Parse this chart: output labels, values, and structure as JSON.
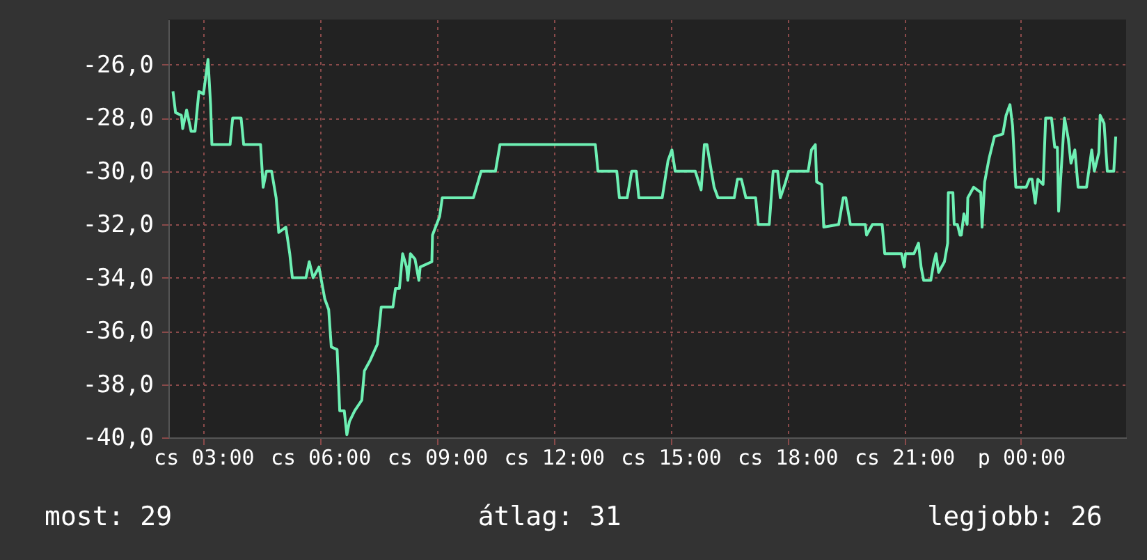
{
  "chart_data": {
    "type": "line",
    "xlim": [
      "--01-04T02:06",
      "--01-05T02:42"
    ],
    "ylim": [
      -40,
      -24.3
    ],
    "xticks": [
      {
        "value": "--01-04T03:00",
        "label": "cs 03:00"
      },
      {
        "value": "--01-04T06:00",
        "label": "cs 06:00"
      },
      {
        "value": "--01-04T09:00",
        "label": "cs 09:00"
      },
      {
        "value": "--01-04T12:00",
        "label": "cs 12:00"
      },
      {
        "value": "--01-04T15:00",
        "label": "cs 15:00"
      },
      {
        "value": "--01-04T18:00",
        "label": "cs 18:00"
      },
      {
        "value": "--01-04T21:00",
        "label": "cs 21:00"
      },
      {
        "value": "--01-05T00:00",
        "label": "p 00:00"
      }
    ],
    "yticks": [
      {
        "value": -40,
        "label": "-40,0"
      },
      {
        "value": -38,
        "label": "-38,0"
      },
      {
        "value": -36,
        "label": "-36,0"
      },
      {
        "value": -34,
        "label": "-34,0"
      },
      {
        "value": -32,
        "label": "-32,0"
      },
      {
        "value": -30,
        "label": "-30,0"
      },
      {
        "value": -28,
        "label": "-28,0"
      },
      {
        "value": -26,
        "label": "-26,0"
      }
    ],
    "grid": true,
    "annotations": [
      "most: 29",
      "átlag: 31",
      "legjobb: 26"
    ],
    "series": [
      {
        "color": "#6ef0b4",
        "x": [
          "--01-04T02:13",
          "--01-04T02:17",
          "--01-04T02:26",
          "--01-04T02:28",
          "--01-04T02:34",
          "--01-04T02:41",
          "--01-04T02:47",
          "--01-04T02:53",
          "--01-04T03:00",
          "--01-04T03:07",
          "--01-04T03:11",
          "--01-04T03:13",
          "--01-04T03:41",
          "--01-04T03:45",
          "--01-04T03:58",
          "--01-04T04:02",
          "--01-04T04:28",
          "--01-04T04:32",
          "--01-04T04:37",
          "--01-04T04:45",
          "--01-04T04:52",
          "--01-04T04:56",
          "--01-04T05:07",
          "--01-04T05:13",
          "--01-04T05:17",
          "--01-04T05:38",
          "--01-04T05:43",
          "--01-04T05:49",
          "--01-04T05:58",
          "--01-04T06:07",
          "--01-04T06:13",
          "--01-04T06:17",
          "--01-04T06:26",
          "--01-04T06:30",
          "--01-04T06:37",
          "--01-04T06:41",
          "--01-04T06:45",
          "--01-04T06:53",
          "--01-04T07:04",
          "--01-04T07:08",
          "--01-04T07:17",
          "--01-04T07:28",
          "--01-04T07:34",
          "--01-04T07:52",
          "--01-04T07:56",
          "--01-04T08:02",
          "--01-04T08:07",
          "--01-04T08:13",
          "--01-04T08:15",
          "--01-04T08:19",
          "--01-04T08:26",
          "--01-04T08:32",
          "--01-04T08:34",
          "--01-04T08:52",
          "--01-04T08:53",
          "--01-04T09:04",
          "--01-04T09:08",
          "--01-04T09:37",
          "--01-04T09:56",
          "--01-04T10:02",
          "--01-04T10:08",
          "--01-04T10:30",
          "--01-04T10:37",
          "--01-04T13:04",
          "--01-04T13:08",
          "--01-04T13:37",
          "--01-04T13:41",
          "--01-04T13:53",
          "--01-04T14:00",
          "--01-04T14:07",
          "--01-04T14:11",
          "--01-04T14:47",
          "--01-04T14:56",
          "--01-04T15:02",
          "--01-04T15:07",
          "--01-04T15:38",
          "--01-04T15:47",
          "--01-04T15:52",
          "--01-04T15:56",
          "--01-04T16:00",
          "--01-04T16:07",
          "--01-04T16:13",
          "--01-04T16:38",
          "--01-04T16:43",
          "--01-04T16:49",
          "--01-04T16:56",
          "--01-04T17:11",
          "--01-04T17:15",
          "--01-04T17:32",
          "--01-04T17:38",
          "--01-04T17:45",
          "--01-04T17:49",
          "--01-04T17:56",
          "--01-04T18:02",
          "--01-04T18:26",
          "--01-04T18:32",
          "--01-04T18:37",
          "--01-04T18:43",
          "--01-04T18:45",
          "--01-04T18:53",
          "--01-04T18:56",
          "--01-04T19:19",
          "--01-04T19:26",
          "--01-04T19:30",
          "--01-04T19:37",
          "--01-04T20:00",
          "--01-04T20:02",
          "--01-04T20:11",
          "--01-04T20:26",
          "--01-04T20:30",
          "--01-04T20:56",
          "--01-04T21:00",
          "--01-04T21:02",
          "--01-04T21:15",
          "--01-04T21:22",
          "--01-04T21:26",
          "--01-04T21:30",
          "--01-04T21:41",
          "--01-04T21:45",
          "--01-04T21:49",
          "--01-04T21:53",
          "--01-04T22:02",
          "--01-04T22:07",
          "--01-04T22:08",
          "--01-04T22:15",
          "--01-04T22:17",
          "--01-04T22:22",
          "--01-04T22:26",
          "--01-04T22:28",
          "--01-04T22:32",
          "--01-04T22:37",
          "--01-04T22:38",
          "--01-04T22:47",
          "--01-04T22:58",
          "--01-04T23:00",
          "--01-04T23:04",
          "--01-04T23:11",
          "--01-04T23:19",
          "--01-04T23:32",
          "--01-04T23:37",
          "--01-04T23:43",
          "--01-04T23:47",
          "--01-04T23:52",
          "--01-04T23:58",
          "--01-05T00:08",
          "--01-05T00:13",
          "--01-05T00:17",
          "--01-05T00:22",
          "--01-05T00:26",
          "--01-05T00:34",
          "--01-05T00:38",
          "--01-05T00:47",
          "--01-05T00:52",
          "--01-05T00:56",
          "--01-05T00:58",
          "--01-05T01:07",
          "--01-05T01:13",
          "--01-05T01:17",
          "--01-05T01:23",
          "--01-05T01:28",
          "--01-05T01:41",
          "--01-05T01:49",
          "--01-05T01:53",
          "--01-05T02:00",
          "--01-05T02:02",
          "--01-05T02:08",
          "--01-05T02:13",
          "--01-05T02:23",
          "--01-05T02:26"
        ],
        "values": [
          -27.0,
          -27.8,
          -27.9,
          -28.4,
          -27.7,
          -28.5,
          -28.5,
          -27.0,
          -27.1,
          -25.8,
          -27.5,
          -29.0,
          -29.0,
          -28.0,
          -28.0,
          -29.0,
          -29.0,
          -30.6,
          -30.0,
          -30.0,
          -31.0,
          -32.3,
          -32.1,
          -33.1,
          -34.0,
          -34.0,
          -33.4,
          -34.0,
          -33.6,
          -34.8,
          -35.2,
          -36.6,
          -36.7,
          -39.0,
          -39.0,
          -39.9,
          -39.4,
          -39.0,
          -38.6,
          -37.5,
          -37.1,
          -36.5,
          -35.1,
          -35.1,
          -34.4,
          -34.4,
          -33.1,
          -33.6,
          -34.1,
          -33.1,
          -33.3,
          -34.1,
          -33.6,
          -33.4,
          -32.4,
          -31.7,
          -31.0,
          -31.0,
          -31.0,
          -30.5,
          -30.0,
          -30.0,
          -29.0,
          -29.0,
          -30.0,
          -30.0,
          -31.0,
          -31.0,
          -30.0,
          -30.0,
          -31.0,
          -31.0,
          -29.6,
          -29.2,
          -30.0,
          -30.0,
          -30.7,
          -29.0,
          -29.0,
          -29.6,
          -30.6,
          -31.0,
          -31.0,
          -30.3,
          -30.3,
          -31.0,
          -31.0,
          -32.0,
          -32.0,
          -30.0,
          -30.0,
          -31.0,
          -30.5,
          -30.0,
          -30.0,
          -30.0,
          -29.2,
          -29.0,
          -30.4,
          -30.5,
          -32.1,
          -32.0,
          -31.0,
          -31.0,
          -32.0,
          -32.0,
          -32.4,
          -32.0,
          -32.0,
          -33.1,
          -33.1,
          -33.6,
          -33.1,
          -33.1,
          -32.7,
          -33.6,
          -34.1,
          -34.1,
          -33.5,
          -33.1,
          -33.8,
          -33.4,
          -32.7,
          -30.8,
          -30.8,
          -32.0,
          -32.0,
          -32.4,
          -32.4,
          -31.6,
          -32.0,
          -31.0,
          -30.6,
          -30.8,
          -32.1,
          -30.4,
          -29.5,
          -28.7,
          -28.6,
          -27.9,
          -27.5,
          -28.3,
          -30.6,
          -30.6,
          -30.6,
          -30.3,
          -30.3,
          -31.2,
          -30.3,
          -30.5,
          -28.0,
          -28.0,
          -29.1,
          -29.1,
          -31.5,
          -28.0,
          -28.8,
          -29.7,
          -29.2,
          -30.6,
          -30.6,
          -29.2,
          -30.0,
          -29.3,
          -27.9,
          -28.2,
          -30.0,
          -30.0,
          -28.7
        ]
      }
    ]
  }
}
